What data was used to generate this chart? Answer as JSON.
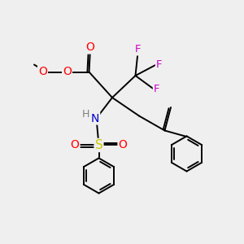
{
  "background_color": "#efefef",
  "colors": {
    "O": "#ff0000",
    "N": "#0000cd",
    "S": "#cccc00",
    "F": "#cc00cc",
    "H": "#808080",
    "C": "#000000"
  },
  "figsize": [
    3.0,
    3.0
  ],
  "dpi": 100
}
